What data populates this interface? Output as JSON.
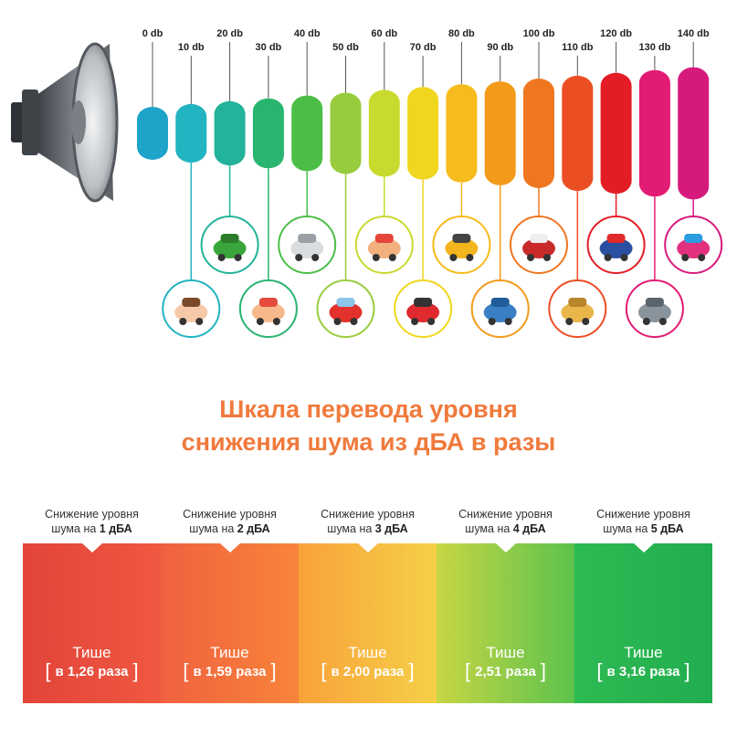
{
  "db_scale": {
    "levels": [
      {
        "label": "0 db",
        "color": "#1ea3c9"
      },
      {
        "label": "10 db",
        "color": "#22b4c0"
      },
      {
        "label": "20 db",
        "color": "#22b39a"
      },
      {
        "label": "30 db",
        "color": "#29b56f"
      },
      {
        "label": "40 db",
        "color": "#4cbe48"
      },
      {
        "label": "50 db",
        "color": "#98cc3e"
      },
      {
        "label": "60 db",
        "color": "#c9da2e"
      },
      {
        "label": "70 db",
        "color": "#f0d61e"
      },
      {
        "label": "80 db",
        "color": "#f6bb1c"
      },
      {
        "label": "90 db",
        "color": "#f39a1b"
      },
      {
        "label": "100 db",
        "color": "#ef7720"
      },
      {
        "label": "110 db",
        "color": "#ec4e24"
      },
      {
        "label": "120 db",
        "color": "#e31d26"
      },
      {
        "label": "130 db",
        "color": "#e21b74"
      },
      {
        "label": "140 db",
        "color": "#d61a7d"
      }
    ],
    "examples": [
      {
        "level": "10 db",
        "icon": "whisper-icon"
      },
      {
        "level": "20 db",
        "icon": "leaves-icon"
      },
      {
        "level": "30 db",
        "icon": "talking-kids-icon"
      },
      {
        "level": "40 db",
        "icon": "refrigerator-icon"
      },
      {
        "level": "50 db",
        "icon": "umbrella-rain-icon"
      },
      {
        "level": "60 db",
        "icon": "conversation-icon"
      },
      {
        "level": "70 db",
        "icon": "car-icon"
      },
      {
        "level": "80 db",
        "icon": "truck-icon"
      },
      {
        "level": "90 db",
        "icon": "hair-dryer-icon"
      },
      {
        "level": "100 db",
        "icon": "helicopter-icon"
      },
      {
        "level": "110 db",
        "icon": "trombone-icon"
      },
      {
        "level": "120 db",
        "icon": "police-car-icon"
      },
      {
        "level": "130 db",
        "icon": "jet-icon"
      },
      {
        "level": "140 db",
        "icon": "fireworks-icon"
      }
    ]
  },
  "title": {
    "line1": "Шкала перевода уровня",
    "line2": "снижения шума из дБА в разы",
    "color": "#f07a3c"
  },
  "reduction_table": [
    {
      "caption_line1": "Снижение уровня",
      "caption_prefix": "шума на ",
      "caption_value": "1 дБА",
      "quiet": "Тише",
      "times": "в 1,26 раза",
      "gradient": [
        "#e2443a",
        "#ef5840"
      ]
    },
    {
      "caption_line1": "Снижение уровня",
      "caption_prefix": "шума на ",
      "caption_value": "2 дБА",
      "quiet": "Тише",
      "times": "в 1,59 раза",
      "gradient": [
        "#f0613f",
        "#f8843a"
      ]
    },
    {
      "caption_line1": "Снижение уровня",
      "caption_prefix": "шума на ",
      "caption_value": "3 дБА",
      "quiet": "Тише",
      "times": "в 2,00 раза",
      "gradient": [
        "#f8a23a",
        "#f6d047"
      ]
    },
    {
      "caption_line1": "Снижение уровня",
      "caption_prefix": "шума на ",
      "caption_value": "4 дБА",
      "quiet": "Тише",
      "times": "2,51 раза",
      "gradient": [
        "#c7d644",
        "#5cc24d"
      ]
    },
    {
      "caption_line1": "Снижение уровня",
      "caption_prefix": "шума на ",
      "caption_value": "5 дБА",
      "quiet": "Тише",
      "times": "в 3,16 раза",
      "gradient": [
        "#2dba52",
        "#22ad4f"
      ]
    }
  ]
}
